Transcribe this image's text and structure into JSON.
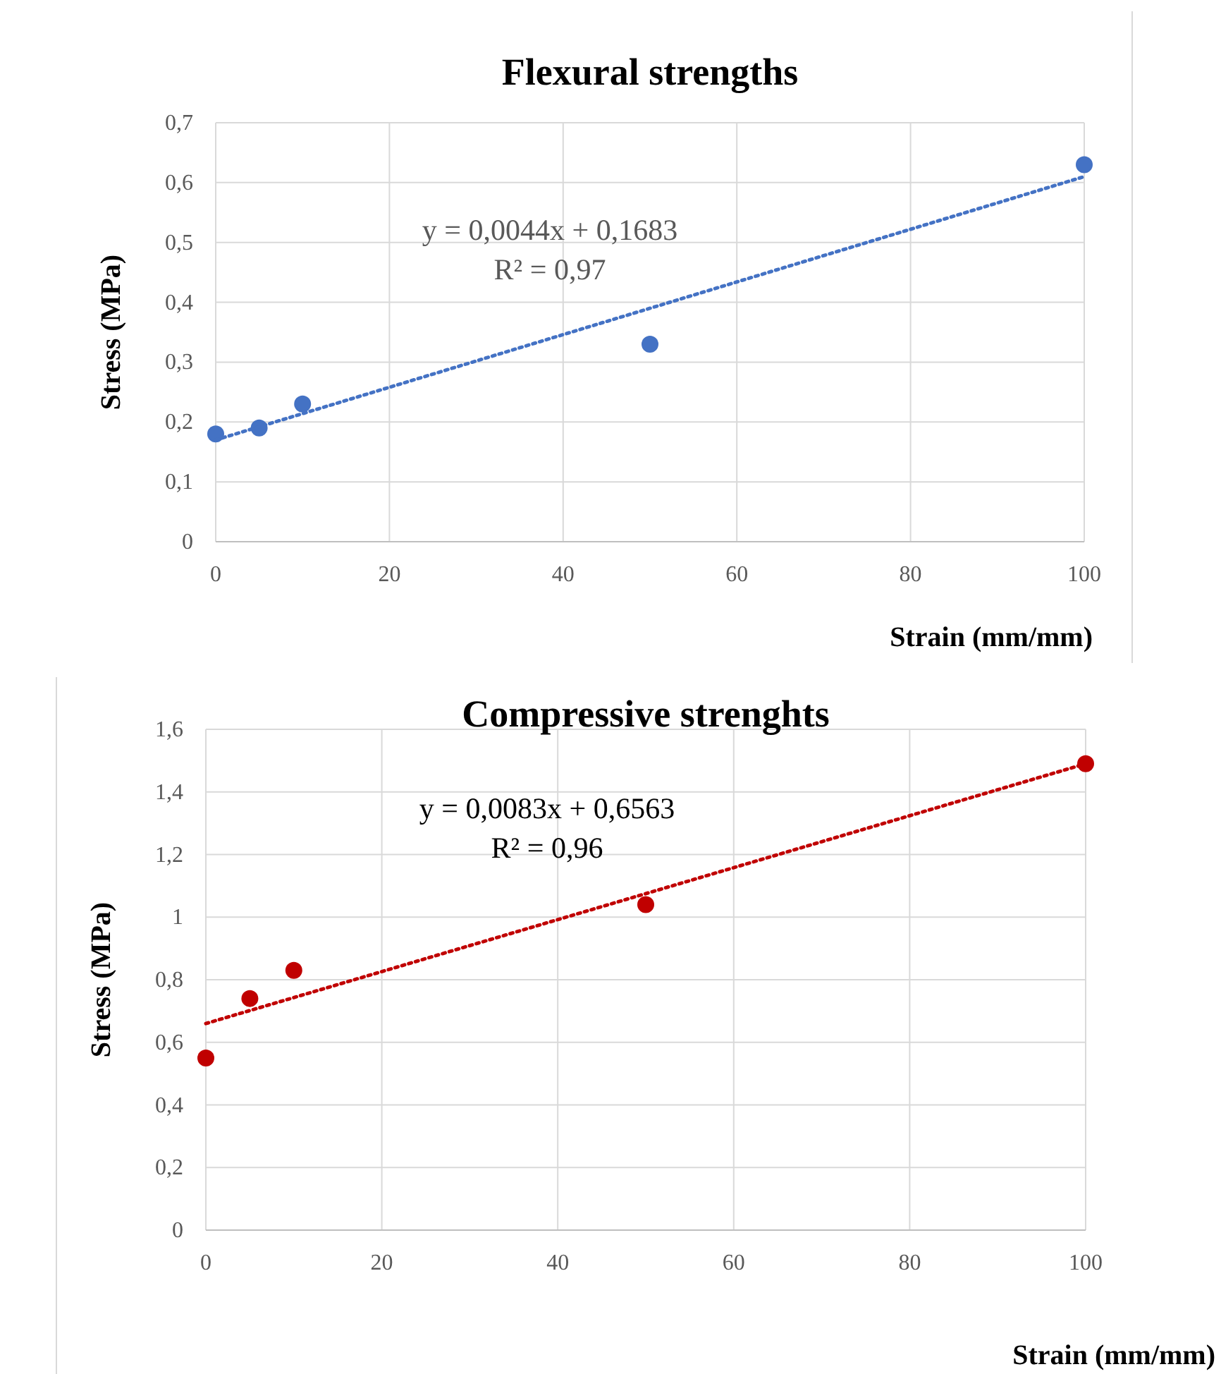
{
  "chart_data": [
    {
      "type": "scatter",
      "title": "Flexural strengths",
      "xlabel": "Strain (mm/mm)",
      "ylabel": "Stress (MPa)",
      "xlim": [
        0,
        100
      ],
      "xticks": [
        0,
        20,
        40,
        60,
        80,
        100
      ],
      "ylim": [
        0,
        0.7
      ],
      "yticks": [
        {
          "value": 0,
          "label": "0"
        },
        {
          "value": 0.1,
          "label": "0,1"
        },
        {
          "value": 0.2,
          "label": "0,2"
        },
        {
          "value": 0.3,
          "label": "0,3"
        },
        {
          "value": 0.4,
          "label": "0,4"
        },
        {
          "value": 0.5,
          "label": "0,5"
        },
        {
          "value": 0.6,
          "label": "0,6"
        },
        {
          "value": 0.7,
          "label": "0,7"
        }
      ],
      "grid": true,
      "annotations": [
        "y = 0,0044x + 0,1683",
        "R² = 0,97"
      ],
      "series": [
        {
          "color": "#4472c4",
          "marker": "circle",
          "x": [
            0,
            5,
            10,
            50,
            100
          ],
          "values": [
            0.18,
            0.19,
            0.23,
            0.33,
            0.63
          ]
        },
        {
          "type": "line",
          "color": "#4472c4",
          "marker": "none",
          "line_style": "dotted",
          "x": [
            0,
            100
          ],
          "values": [
            0.17,
            0.61
          ]
        }
      ]
    },
    {
      "type": "scatter",
      "title": "Compressive strenghts",
      "xlabel": "Strain (mm/mm)",
      "ylabel": "Stress (MPa)",
      "xlim": [
        0,
        100
      ],
      "xticks": [
        0,
        20,
        40,
        60,
        80,
        100
      ],
      "ylim": [
        0,
        1.6
      ],
      "yticks": [
        {
          "value": 0,
          "label": "0"
        },
        {
          "value": 0.2,
          "label": "0,2"
        },
        {
          "value": 0.4,
          "label": "0,4"
        },
        {
          "value": 0.6,
          "label": "0,6"
        },
        {
          "value": 0.8,
          "label": "0,8"
        },
        {
          "value": 1,
          "label": "1"
        },
        {
          "value": 1.2,
          "label": "1,2"
        },
        {
          "value": 1.4,
          "label": "1,4"
        },
        {
          "value": 1.6,
          "label": "1,6"
        }
      ],
      "grid": true,
      "annotations": [
        "y = 0,0083x + 0,6563",
        "R² = 0,96"
      ],
      "series": [
        {
          "color": "#c00000",
          "marker": "circle",
          "x": [
            0,
            5,
            10,
            50,
            100
          ],
          "values": [
            0.55,
            0.74,
            0.83,
            1.04,
            1.49
          ]
        },
        {
          "type": "line",
          "color": "#c00000",
          "marker": "none",
          "line_style": "dotted",
          "x": [
            0,
            100
          ],
          "values": [
            0.66,
            1.49
          ]
        }
      ]
    }
  ]
}
